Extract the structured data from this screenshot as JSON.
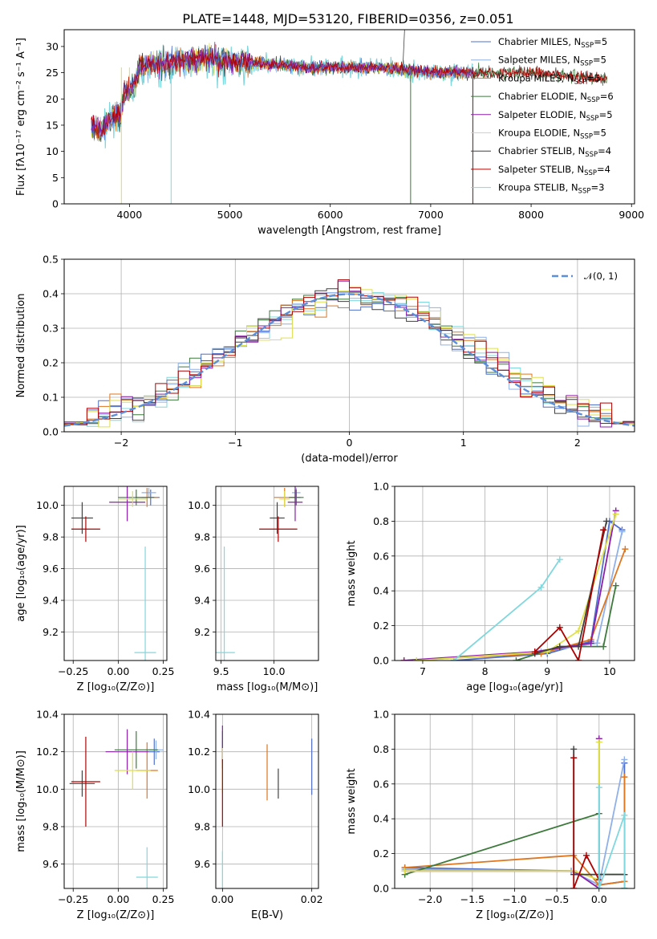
{
  "figure": {
    "title": "PLATE=1448, MJD=53120, FIBERID=0356, z=0.051"
  },
  "models": [
    {
      "name": "Chabrier MILES",
      "nssp": 5,
      "color": "#4f6fce"
    },
    {
      "name": "Salpeter MILES",
      "nssp": 5,
      "color": "#8fb0e8"
    },
    {
      "name": "Kroupa MILES",
      "nssp": 5,
      "color": "#e0761f"
    },
    {
      "name": "Chabrier ELODIE",
      "nssp": 6,
      "color": "#3c7a3c"
    },
    {
      "name": "Salpeter ELODIE",
      "nssp": 5,
      "color": "#8b1fa9"
    },
    {
      "name": "Kroupa ELODIE",
      "nssp": 5,
      "color": "#dfe04a"
    },
    {
      "name": "Chabrier STELIB",
      "nssp": 4,
      "color": "#404040"
    },
    {
      "name": "Salpeter STELIB",
      "nssp": 4,
      "color": "#b00000"
    },
    {
      "name": "Kroupa STELIB",
      "nssp": 3,
      "color": "#7fd8de"
    }
  ],
  "legend_nssp_prefix": "N",
  "legend_nssp_sub": "SSP",
  "chart_data": [
    {
      "id": "spectrum",
      "type": "line",
      "xlabel": "wavelength [Angstrom, rest frame]",
      "ylabel": "Flux [fλ10⁻¹⁷ erg cm⁻² s⁻¹ A⁻¹]",
      "xlim": [
        3350,
        9030
      ],
      "ylim": [
        0,
        33.2
      ],
      "xticks": [
        4000,
        5000,
        6000,
        7000,
        8000,
        9000
      ],
      "yticks": [
        0,
        5,
        10,
        15,
        20,
        25,
        30
      ],
      "spectrum_trend": [
        [
          3620,
          15
        ],
        [
          3700,
          14
        ],
        [
          3800,
          16
        ],
        [
          3900,
          17
        ],
        [
          3950,
          21
        ],
        [
          4050,
          23
        ],
        [
          4100,
          26
        ],
        [
          4200,
          26.5
        ],
        [
          4400,
          27
        ],
        [
          4600,
          27.5
        ],
        [
          4800,
          28
        ],
        [
          4900,
          27.5
        ],
        [
          5000,
          27
        ],
        [
          5200,
          27
        ],
        [
          5500,
          26.5
        ],
        [
          5800,
          26
        ],
        [
          6000,
          26
        ],
        [
          6300,
          26
        ],
        [
          6500,
          26
        ],
        [
          6800,
          25.5
        ],
        [
          7000,
          25
        ],
        [
          7300,
          25
        ],
        [
          7600,
          25
        ],
        [
          8000,
          25
        ],
        [
          8300,
          24.5
        ],
        [
          8600,
          24
        ],
        [
          8760,
          24
        ]
      ],
      "dropouts_x": [
        3920,
        4415,
        6800,
        7420
      ]
    },
    {
      "id": "residuals",
      "type": "histogram",
      "xlabel": "(data-model)/error",
      "ylabel": "Normed distribution",
      "xlim": [
        -2.5,
        2.5
      ],
      "ylim": [
        0,
        0.5
      ],
      "xticks": [
        -2,
        -1,
        0,
        1,
        2
      ],
      "yticks": [
        0.0,
        0.1,
        0.2,
        0.3,
        0.4,
        0.5
      ],
      "bin_width": 0.1,
      "reference_curve": {
        "label": "𝒩(0, 1)",
        "color": "#5b8fd9"
      }
    },
    {
      "id": "age-vs-z",
      "type": "scatter",
      "xlabel": "Z [log₁₀(Z/Z⊙)]",
      "ylabel": "age  [log₁₀(age/yr)]",
      "xlim": [
        -0.3,
        0.27
      ],
      "ylim": [
        9.02,
        10.12
      ],
      "xticks": [
        -0.25,
        0.0,
        0.25
      ],
      "yticks": [
        9.2,
        9.4,
        9.6,
        9.8,
        10.0
      ],
      "points": [
        {
          "model": 0,
          "x": 0.18,
          "y": 10.05,
          "xerr": 0.05,
          "yerr": 0.05
        },
        {
          "model": 1,
          "x": 0.17,
          "y": 10.08,
          "xerr": 0.04,
          "yerr": 0.03
        },
        {
          "model": 2,
          "x": 0.16,
          "y": 10.05,
          "xerr": 0.06,
          "yerr": 0.06
        },
        {
          "model": 3,
          "x": 0.1,
          "y": 10.05,
          "xerr": 0.1,
          "yerr": 0.05
        },
        {
          "model": 4,
          "x": 0.05,
          "y": 10.02,
          "xerr": 0.1,
          "yerr": 0.12
        },
        {
          "model": 5,
          "x": 0.08,
          "y": 10.04,
          "xerr": 0.08,
          "yerr": 0.05
        },
        {
          "model": 6,
          "x": -0.2,
          "y": 9.92,
          "xerr": 0.06,
          "yerr": 0.1
        },
        {
          "model": 7,
          "x": -0.18,
          "y": 9.85,
          "xerr": 0.08,
          "yerr": 0.08
        },
        {
          "model": 8,
          "x": 0.15,
          "y": 9.07,
          "xerr": 0.06,
          "yerr": 0.67
        }
      ]
    },
    {
      "id": "age-vs-mass",
      "type": "scatter",
      "xlabel": "mass [log₁₀(M/M⊙)]",
      "ylabel": "",
      "xlim": [
        9.45,
        10.42
      ],
      "ylim": [
        9.02,
        10.12
      ],
      "xticks": [
        9.5,
        10.0
      ],
      "yticks": [
        9.2,
        9.4,
        9.6,
        9.8,
        10.0
      ],
      "points": [
        {
          "model": 0,
          "x": 10.2,
          "y": 10.05,
          "xerr": 0.05,
          "yerr": 0.05
        },
        {
          "model": 1,
          "x": 10.21,
          "y": 10.08,
          "xerr": 0.04,
          "yerr": 0.03
        },
        {
          "model": 2,
          "x": 10.1,
          "y": 10.05,
          "xerr": 0.1,
          "yerr": 0.06
        },
        {
          "model": 3,
          "x": 10.21,
          "y": 10.05,
          "xerr": 0.07,
          "yerr": 0.05
        },
        {
          "model": 4,
          "x": 10.2,
          "y": 10.02,
          "xerr": 0.07,
          "yerr": 0.12
        },
        {
          "model": 5,
          "x": 10.1,
          "y": 10.04,
          "xerr": 0.05,
          "yerr": 0.05
        },
        {
          "model": 6,
          "x": 10.03,
          "y": 9.92,
          "xerr": 0.07,
          "yerr": 0.1
        },
        {
          "model": 7,
          "x": 10.04,
          "y": 9.85,
          "xerr": 0.18,
          "yerr": 0.08
        },
        {
          "model": 8,
          "x": 9.53,
          "y": 9.07,
          "xerr": 0.1,
          "yerr": 0.67
        }
      ]
    },
    {
      "id": "weight-vs-age",
      "type": "line",
      "xlabel": "age  [log₁₀(age/yr)]",
      "ylabel": "mass weight",
      "xlim": [
        6.55,
        10.4
      ],
      "ylim": [
        0,
        1.0
      ],
      "xticks": [
        7,
        8,
        9,
        10
      ],
      "yticks": [
        0.0,
        0.2,
        0.4,
        0.6,
        0.8,
        1.0
      ],
      "series": [
        {
          "model": 0,
          "x": [
            7.5,
            9.0,
            9.7,
            10.0,
            10.2
          ],
          "y": [
            0.0,
            0.04,
            0.11,
            0.8,
            0.75
          ]
        },
        {
          "model": 1,
          "x": [
            6.9,
            8.9,
            9.8,
            10.2
          ],
          "y": [
            0.0,
            0.05,
            0.1,
            0.74
          ]
        },
        {
          "model": 2,
          "x": [
            6.7,
            8.9,
            9.7,
            10.25
          ],
          "y": [
            0.0,
            0.04,
            0.12,
            0.64
          ]
        },
        {
          "model": 3,
          "x": [
            8.5,
            9.2,
            9.9,
            10.1
          ],
          "y": [
            0.0,
            0.08,
            0.08,
            0.43
          ]
        },
        {
          "model": 4,
          "x": [
            6.7,
            8.8,
            9.7,
            10.1
          ],
          "y": [
            0.0,
            0.05,
            0.1,
            0.86
          ]
        },
        {
          "model": 5,
          "x": [
            6.9,
            9.0,
            9.5,
            10.1
          ],
          "y": [
            0.0,
            0.05,
            0.17,
            0.84
          ]
        },
        {
          "model": 6,
          "x": [
            8.8,
            9.2,
            9.5,
            9.95
          ],
          "y": [
            0.04,
            0.08,
            0.08,
            0.8
          ]
        },
        {
          "model": 7,
          "x": [
            8.8,
            9.2,
            9.5,
            9.9
          ],
          "y": [
            0.05,
            0.19,
            0.0,
            0.75
          ]
        },
        {
          "model": 8,
          "x": [
            7.5,
            8.9,
            9.2
          ],
          "y": [
            0.0,
            0.42,
            0.58
          ]
        }
      ]
    },
    {
      "id": "mass-vs-z",
      "type": "scatter",
      "xlabel": "Z [log₁₀(Z/Z⊙)]",
      "ylabel": "mass [log₁₀(M/M⊙)]",
      "xlim": [
        -0.3,
        0.27
      ],
      "ylim": [
        9.47,
        10.4
      ],
      "xticks": [
        -0.25,
        0.0,
        0.25
      ],
      "yticks": [
        9.6,
        9.8,
        10.0,
        10.2,
        10.4
      ],
      "points": [
        {
          "model": 0,
          "x": 0.2,
          "y": 10.2,
          "xerr": 0.03,
          "yerr": 0.07
        },
        {
          "model": 1,
          "x": 0.21,
          "y": 10.21,
          "xerr": 0.04,
          "yerr": 0.05
        },
        {
          "model": 2,
          "x": 0.16,
          "y": 10.1,
          "xerr": 0.06,
          "yerr": 0.15
        },
        {
          "model": 3,
          "x": 0.1,
          "y": 10.21,
          "xerr": 0.12,
          "yerr": 0.1
        },
        {
          "model": 4,
          "x": 0.05,
          "y": 10.2,
          "xerr": 0.12,
          "yerr": 0.12
        },
        {
          "model": 5,
          "x": 0.08,
          "y": 10.1,
          "xerr": 0.1,
          "yerr": 0.1
        },
        {
          "model": 6,
          "x": -0.2,
          "y": 10.03,
          "xerr": 0.07,
          "yerr": 0.07
        },
        {
          "model": 7,
          "x": -0.18,
          "y": 10.04,
          "xerr": 0.08,
          "yerr": 0.24
        },
        {
          "model": 8,
          "x": 0.16,
          "y": 9.53,
          "xerr": 0.06,
          "yerr": 0.16
        }
      ]
    },
    {
      "id": "mass-vs-ebv",
      "type": "scatter",
      "xlabel": "E(B-V)",
      "ylabel": "",
      "xlim": [
        -0.0015,
        0.0215
      ],
      "ylim": [
        9.47,
        10.4
      ],
      "xticks": [
        0.0,
        0.02
      ],
      "yticks": [
        9.6,
        9.8,
        10.0,
        10.2,
        10.4
      ],
      "points": [
        {
          "model": 0,
          "x": 0.02,
          "y": 10.12,
          "xerr": 0,
          "yerr": 0.15
        },
        {
          "model": 1,
          "x": 0.0,
          "y": 10.21,
          "xerr": 0,
          "yerr": 0.05
        },
        {
          "model": 2,
          "x": 0.01,
          "y": 10.09,
          "xerr": 0,
          "yerr": 0.15
        },
        {
          "model": 3,
          "x": 0.0,
          "y": 10.21,
          "xerr": 0,
          "yerr": 0.1
        },
        {
          "model": 4,
          "x": 0.0,
          "y": 10.24,
          "xerr": 0,
          "yerr": 0.1
        },
        {
          "model": 5,
          "x": 0.0,
          "y": 10.1,
          "xerr": 0,
          "yerr": 0.12
        },
        {
          "model": 6,
          "x": 0.0125,
          "y": 10.03,
          "xerr": 0,
          "yerr": 0.08
        },
        {
          "model": 7,
          "x": 0.0,
          "y": 9.98,
          "xerr": 0,
          "yerr": 0.18
        },
        {
          "model": 8,
          "x": 0.0,
          "y": 9.55,
          "xerr": 0,
          "yerr": 0.12
        }
      ]
    },
    {
      "id": "weight-vs-z",
      "type": "line",
      "xlabel": "Z [log₁₀(Z/Z⊙)]",
      "ylabel": "mass weight",
      "xlim": [
        -2.42,
        0.42
      ],
      "ylim": [
        0,
        1.0
      ],
      "xticks": [
        -2.0,
        -1.5,
        -1.0,
        -0.5,
        0.0
      ],
      "yticks": [
        0.0,
        0.2,
        0.4,
        0.6,
        0.8,
        1.0
      ],
      "series": [
        {
          "model": 0,
          "x": [
            -2.3,
            -0.33,
            0.0,
            0.3,
            0.3
          ],
          "y": [
            0.12,
            0.1,
            0.02,
            0.04,
            0.72
          ]
        },
        {
          "model": 1,
          "x": [
            -2.3,
            -0.33,
            0.0,
            0.3
          ],
          "y": [
            0.11,
            0.1,
            0.02,
            0.74
          ]
        },
        {
          "model": 2,
          "x": [
            -2.3,
            -0.3,
            0.0,
            0.3,
            0.3
          ],
          "y": [
            0.12,
            0.19,
            0.02,
            0.04,
            0.64
          ]
        },
        {
          "model": 3,
          "x": [
            -2.3,
            0.0,
            0.0,
            0.3,
            0.3
          ],
          "y": [
            0.08,
            0.43,
            0.08,
            0.08,
            0.0
          ]
        },
        {
          "model": 4,
          "x": [
            -2.3,
            -0.3,
            0.0,
            0.0
          ],
          "y": [
            0.1,
            0.1,
            0.0,
            0.86
          ]
        },
        {
          "model": 5,
          "x": [
            -2.3,
            -0.3,
            0.0,
            0.0
          ],
          "y": [
            0.1,
            0.1,
            0.05,
            0.84
          ]
        },
        {
          "model": 6,
          "x": [
            -0.3,
            -0.3,
            0.0,
            0.3
          ],
          "y": [
            0.8,
            0.08,
            0.08,
            0.08
          ]
        },
        {
          "model": 7,
          "x": [
            -0.3,
            -0.3,
            -0.15,
            0.0
          ],
          "y": [
            0.75,
            0.0,
            0.19,
            0.05
          ]
        },
        {
          "model": 8,
          "x": [
            0.0,
            0.0,
            0.3,
            0.3
          ],
          "y": [
            0.58,
            0.0,
            0.42,
            0.0
          ]
        }
      ]
    }
  ]
}
